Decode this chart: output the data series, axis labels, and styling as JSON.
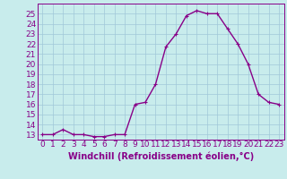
{
  "x": [
    0,
    1,
    2,
    3,
    4,
    5,
    6,
    7,
    8,
    9,
    10,
    11,
    12,
    13,
    14,
    15,
    16,
    17,
    18,
    19,
    20,
    21,
    22,
    23
  ],
  "y": [
    13,
    13,
    13.5,
    13,
    13,
    12.8,
    12.8,
    13,
    13,
    16,
    16.2,
    18,
    21.7,
    23,
    24.8,
    25.3,
    25,
    25,
    23.5,
    22,
    20,
    17,
    16.2,
    16
  ],
  "line_color": "#880088",
  "marker": "+",
  "bg_color": "#c8ecec",
  "grid_color": "#a0c8d8",
  "xlabel": "Windchill (Refroidissement éolien,°C)",
  "ylim": [
    12.5,
    26
  ],
  "xlim": [
    -0.5,
    23.5
  ],
  "yticks": [
    13,
    14,
    15,
    16,
    17,
    18,
    19,
    20,
    21,
    22,
    23,
    24,
    25
  ],
  "xticks": [
    0,
    1,
    2,
    3,
    4,
    5,
    6,
    7,
    8,
    9,
    10,
    11,
    12,
    13,
    14,
    15,
    16,
    17,
    18,
    19,
    20,
    21,
    22,
    23
  ],
  "line_width": 1.0,
  "marker_size": 3,
  "font_size": 6.5,
  "label_font_size": 7
}
